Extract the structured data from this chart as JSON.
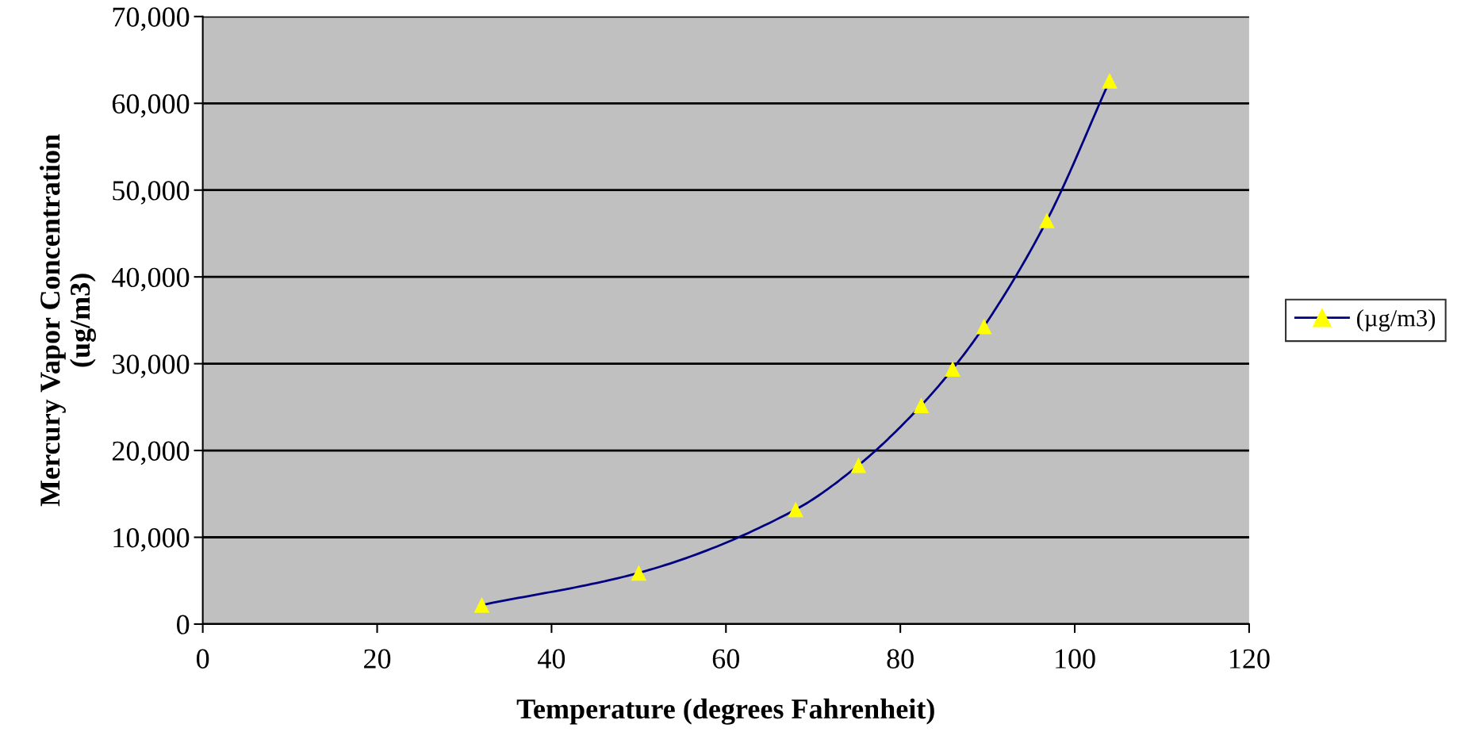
{
  "chart_data": {
    "type": "line",
    "xlabel": "Temperature (degrees Fahrenheit)",
    "ylabel": "Mercury Vapor Concentration\n(ug/m3)",
    "x": [
      32,
      50,
      68,
      75.2,
      82.4,
      86,
      89.6,
      96.8,
      104
    ],
    "series": [
      {
        "name": "(µg/m3)",
        "color": "#000080",
        "colors": [
          "#ffff00",
          "#ffff00",
          "#ffff00",
          "#ffff00",
          "#ffff00",
          "#ffff00",
          "#ffff00",
          "#ffff00",
          "#ffff00"
        ],
        "values": [
          2200,
          5900,
          13200,
          18300,
          25200,
          29400,
          34300,
          46500,
          62600
        ]
      }
    ],
    "xlim": [
      0,
      120
    ],
    "xticks": [
      0,
      20,
      40,
      60,
      80,
      100,
      120
    ],
    "ylim": [
      0,
      70000
    ],
    "yticks": [
      {
        "value": 0,
        "label": "0"
      },
      {
        "value": 10000,
        "label": "10,000"
      },
      {
        "value": 20000,
        "label": "20,000"
      },
      {
        "value": 30000,
        "label": "30,000"
      },
      {
        "value": 40000,
        "label": "40,000"
      },
      {
        "value": 50000,
        "label": "50,000"
      },
      {
        "value": 60000,
        "label": "60,000"
      },
      {
        "value": 70000,
        "label": "70,000"
      }
    ],
    "grid": "y",
    "legend": "right",
    "marker": "triangle",
    "line_style": "solid"
  }
}
